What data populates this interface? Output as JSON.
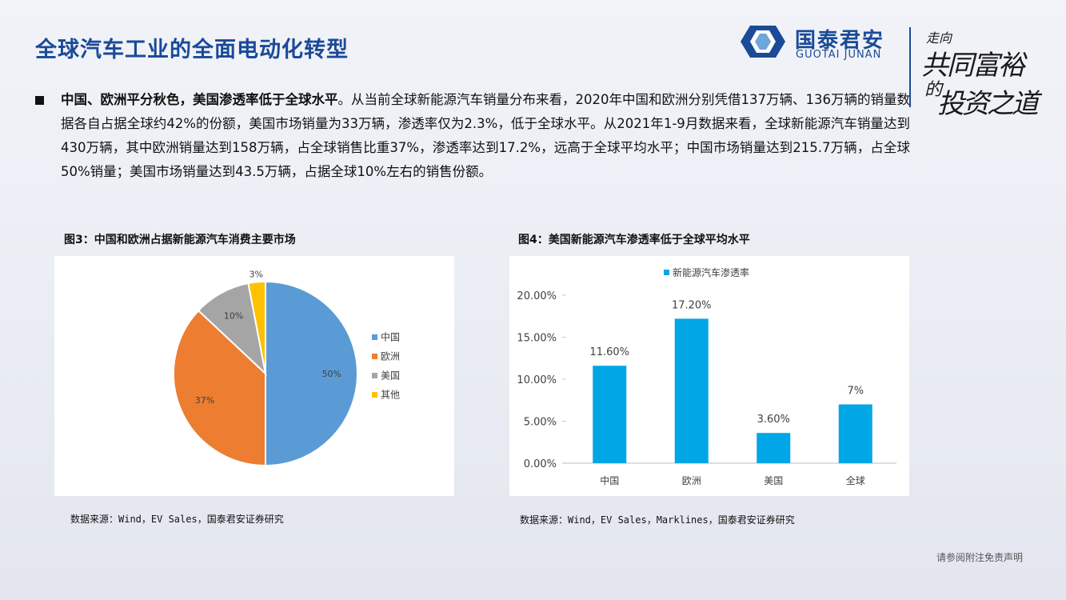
{
  "page": {
    "title": "全球汽车工业的全面电动化转型",
    "logo_cn": "国泰君安",
    "logo_en": "GUOTAI JUNAN",
    "slogan": [
      "走向",
      "共同富裕",
      "的",
      "投资之道"
    ],
    "paragraph_bold": "中国、欧洲平分秋色，美国渗透率低于全球水平",
    "paragraph_rest": "。从当前全球新能源汽车销量分布来看，2020年中国和欧洲分别凭借137万辆、136万辆的销量数据各自占据全球约42%的份额，美国市场销量为33万辆，渗透率仅为2.3%，低于全球水平。从2021年1-9月数据来看，全球新能源汽车销量达到430万辆，其中欧洲销量达到158万辆，占全球销售比重37%，渗透率达到17.2%，远高于全球平均水平；中国市场销量达到215.7万辆，占全球50%销量；美国市场销量达到43.5万辆，占据全球10%左右的销售份额。",
    "fig3_title": "图3：中国和欧洲占据新能源汽车消费主要市场",
    "fig4_title": "图4：美国新能源汽车渗透率低于全球平均水平",
    "source3": "数据来源：Wind，EV Sales，国泰君安证券研究",
    "source4": "数据来源：Wind，EV Sales，Marklines，国泰君安证券研究",
    "footer": "请参阅附注免责声明",
    "colors": {
      "brand": "#1a4a98",
      "bar": "#00a6e6"
    }
  },
  "chart_data": [
    {
      "type": "pie",
      "title": "",
      "labels": [
        "中国",
        "欧洲",
        "美国",
        "其他"
      ],
      "values": [
        50,
        37,
        10,
        3
      ],
      "value_labels": [
        "50%",
        "37%",
        "10%",
        "3%"
      ],
      "colors": [
        "#5b9bd5",
        "#ed7d31",
        "#a5a5a5",
        "#ffc000"
      ],
      "legend": "right"
    },
    {
      "type": "bar",
      "title": "",
      "categories": [
        "中国",
        "欧洲",
        "美国",
        "全球"
      ],
      "series": [
        {
          "name": "新能源汽车渗透率",
          "values": [
            11.6,
            17.2,
            3.6,
            7
          ],
          "labels": [
            "11.60%",
            "17.20%",
            "3.60%",
            "7%"
          ]
        }
      ],
      "ylim": [
        0,
        20
      ],
      "yticks": [
        "0.00%",
        "5.00%",
        "10.00%",
        "15.00%",
        "20.00%"
      ],
      "ytick_values": [
        0,
        5,
        10,
        15,
        20
      ],
      "legend": "top"
    }
  ]
}
